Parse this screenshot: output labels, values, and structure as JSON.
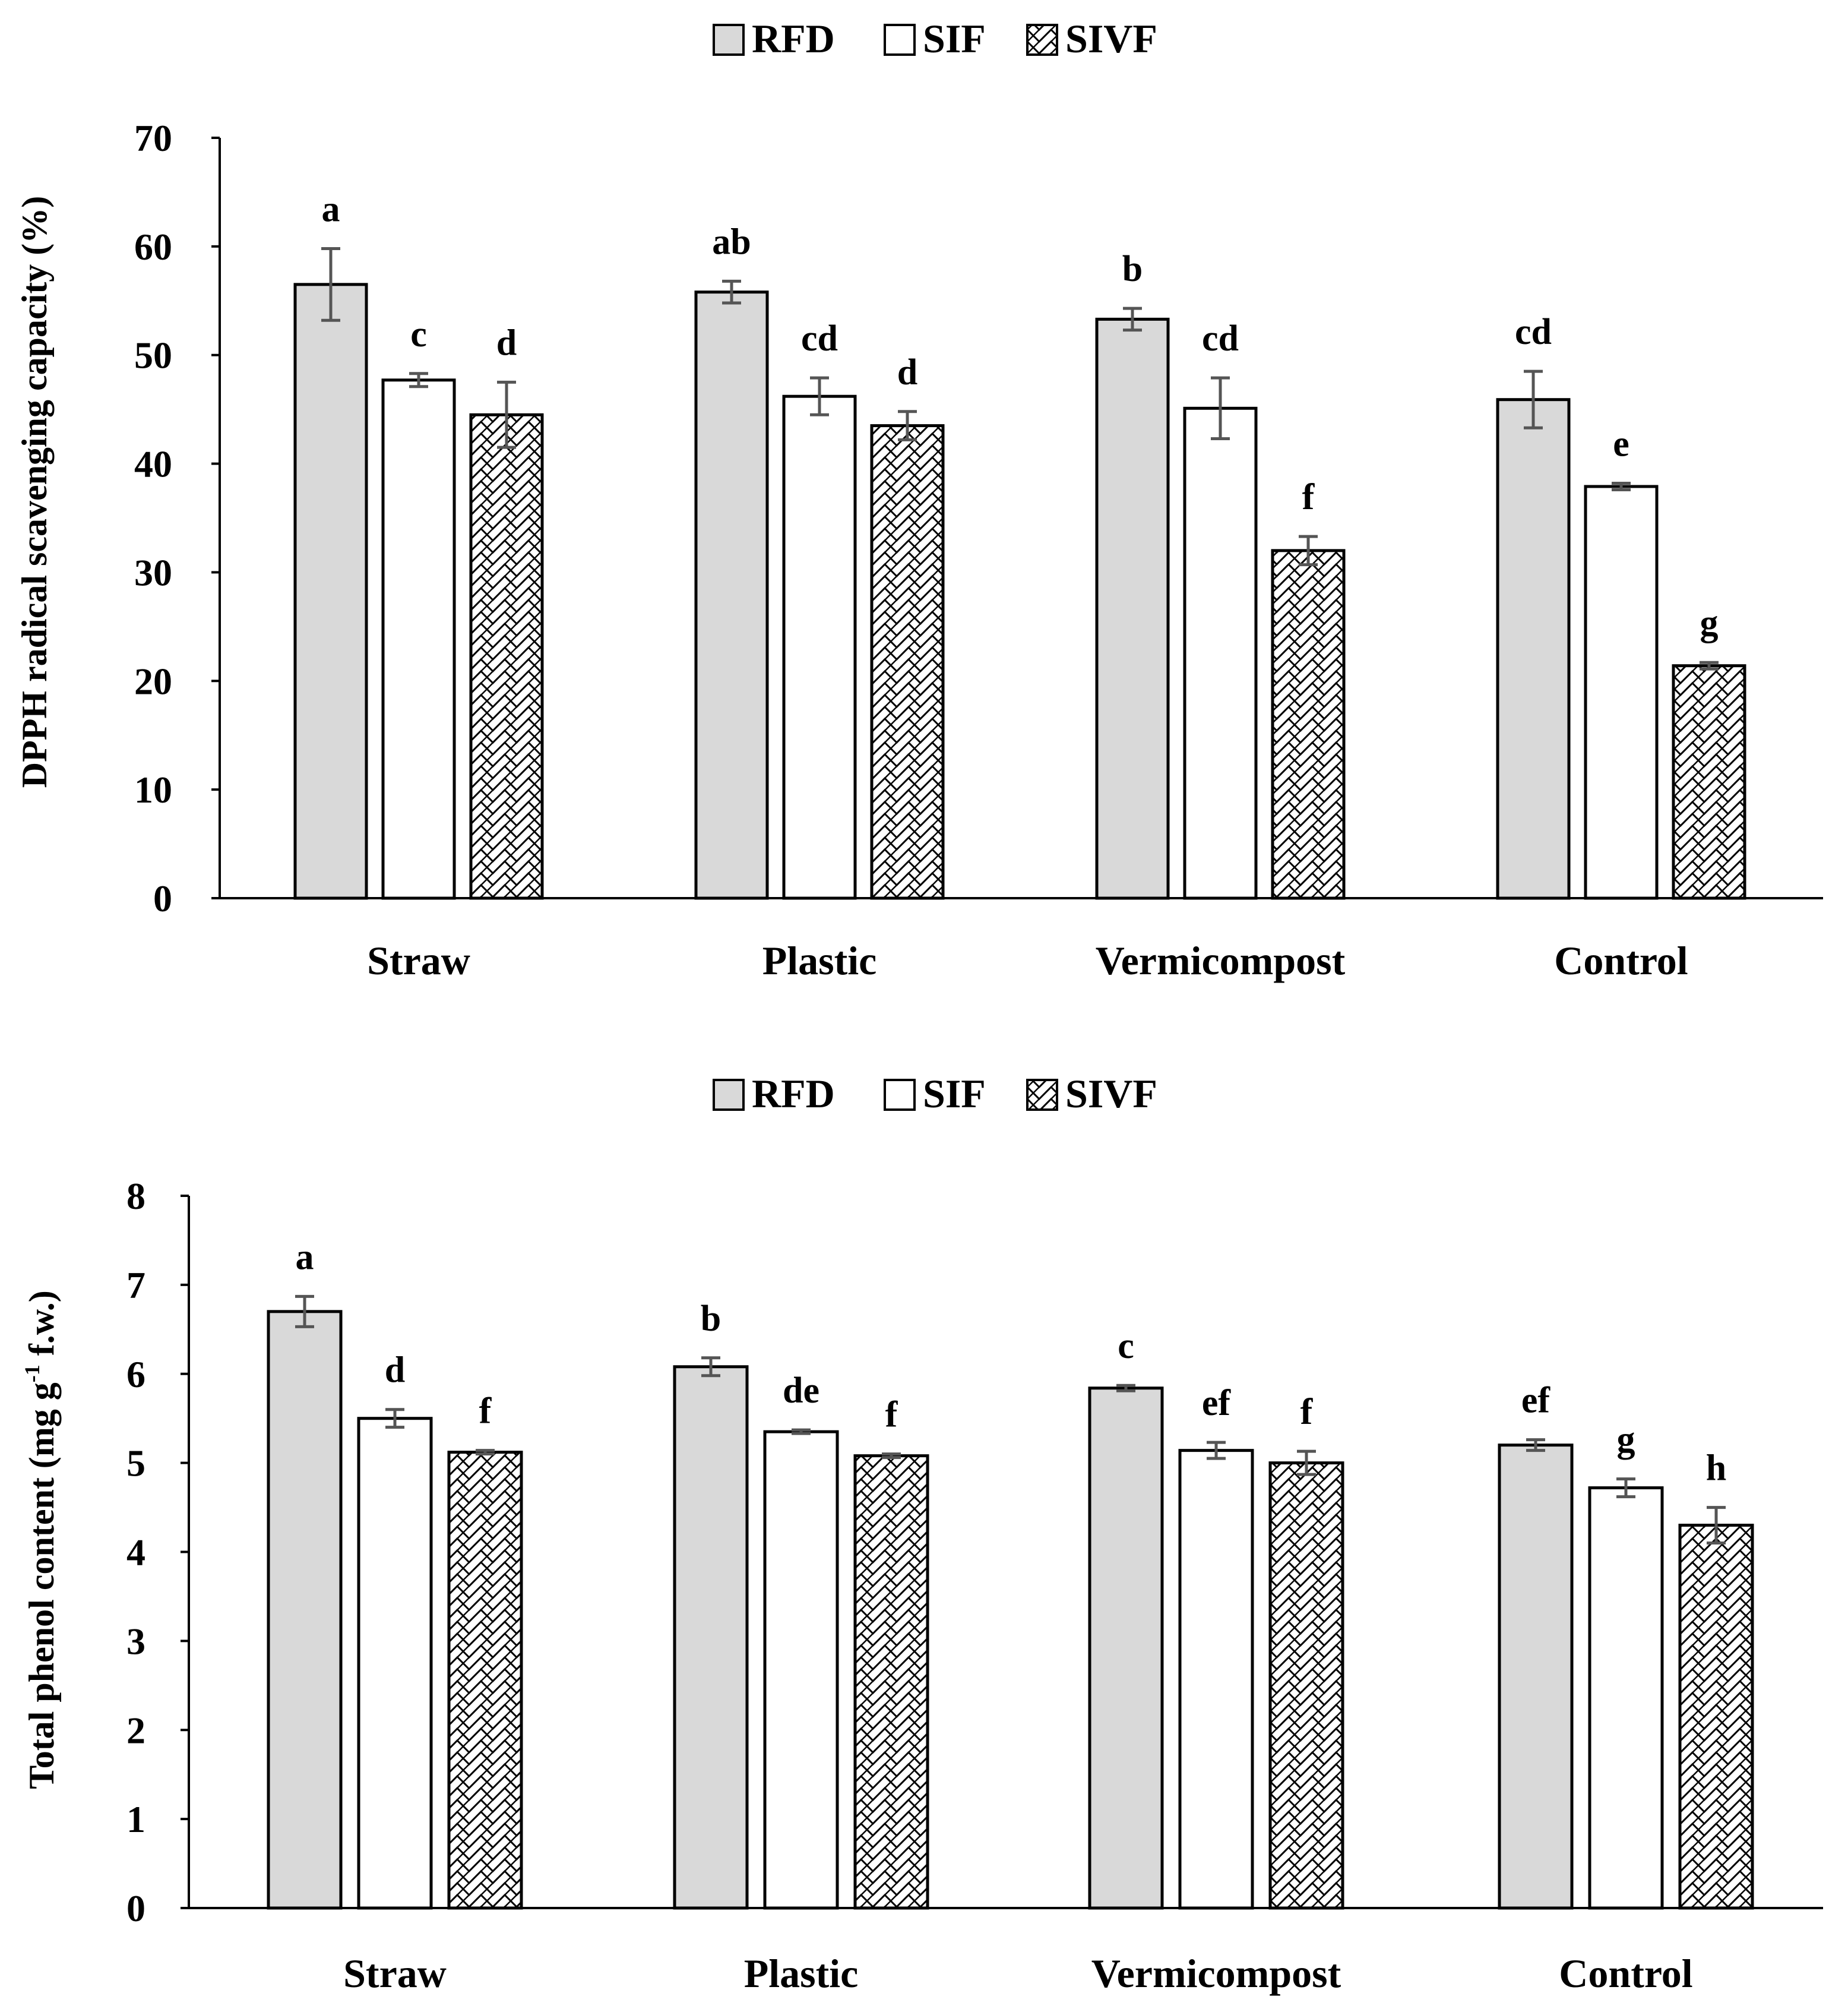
{
  "chart_data": [
    {
      "type": "bar",
      "title": "",
      "xlabel": "",
      "ylabel": "DPPH radical scavenging capacity (%)",
      "ylim": [
        0,
        70
      ],
      "yticks": [
        0,
        10,
        20,
        30,
        40,
        50,
        60,
        70
      ],
      "categories": [
        "Straw",
        "Plastic",
        "Vermicompost",
        "Control"
      ],
      "legend": {
        "position": "top-center",
        "entries": [
          "RFD",
          "SIF",
          "SIVF"
        ]
      },
      "series": [
        {
          "name": "RFD",
          "fill": "#d9d9d9",
          "pattern": "solid",
          "values": [
            56.5,
            55.8,
            53.3,
            45.9
          ],
          "errors": [
            3.3,
            1.0,
            1.0,
            2.6
          ],
          "letters": [
            "a",
            "ab",
            "b",
            "cd"
          ]
        },
        {
          "name": "SIF",
          "fill": "#ffffff",
          "pattern": "solid",
          "values": [
            47.7,
            46.2,
            45.1,
            37.9
          ],
          "errors": [
            0.6,
            1.7,
            2.8,
            0.3
          ],
          "letters": [
            "c",
            "cd",
            "cd",
            "e"
          ]
        },
        {
          "name": "SIVF",
          "fill": "#ffffff",
          "pattern": "zigzag-hatch",
          "values": [
            44.5,
            43.5,
            32.0,
            21.4
          ],
          "errors": [
            3.0,
            1.3,
            1.3,
            0.3
          ],
          "letters": [
            "d",
            "d",
            "f",
            "g"
          ]
        }
      ]
    },
    {
      "type": "bar",
      "title": "",
      "xlabel": "",
      "ylabel": "Total phenol content (mg g-1 f.w.)",
      "ylabel_parts": {
        "before": "Total phenol content (mg g",
        "sup": "-1",
        "after": " f.w.)"
      },
      "ylim": [
        0,
        8
      ],
      "yticks": [
        0,
        1,
        2,
        3,
        4,
        5,
        6,
        7,
        8
      ],
      "categories": [
        "Straw",
        "Plastic",
        "Vermicompost",
        "Control"
      ],
      "legend": {
        "position": "top-center",
        "entries": [
          "RFD",
          "SIF",
          "SIVF"
        ]
      },
      "series": [
        {
          "name": "RFD",
          "fill": "#d9d9d9",
          "pattern": "solid",
          "values": [
            6.7,
            6.08,
            5.84,
            5.2
          ],
          "errors": [
            0.17,
            0.1,
            0.03,
            0.06
          ],
          "letters": [
            "a",
            "b",
            "c",
            "ef"
          ]
        },
        {
          "name": "SIF",
          "fill": "#ffffff",
          "pattern": "solid",
          "values": [
            5.5,
            5.35,
            5.14,
            4.72
          ],
          "errors": [
            0.1,
            0.02,
            0.09,
            0.1
          ],
          "letters": [
            "d",
            "de",
            "ef",
            "g"
          ]
        },
        {
          "name": "SIVF",
          "fill": "#ffffff",
          "pattern": "zigzag-hatch",
          "values": [
            5.12,
            5.08,
            5.0,
            4.3
          ],
          "errors": [
            0.02,
            0.02,
            0.13,
            0.2
          ],
          "letters": [
            "f",
            "f",
            "f",
            "h"
          ]
        }
      ]
    }
  ],
  "colors": {
    "axis": "#000000",
    "error_bar": "#555555",
    "rfd_fill": "#d9d9d9",
    "outline": "#000000"
  }
}
